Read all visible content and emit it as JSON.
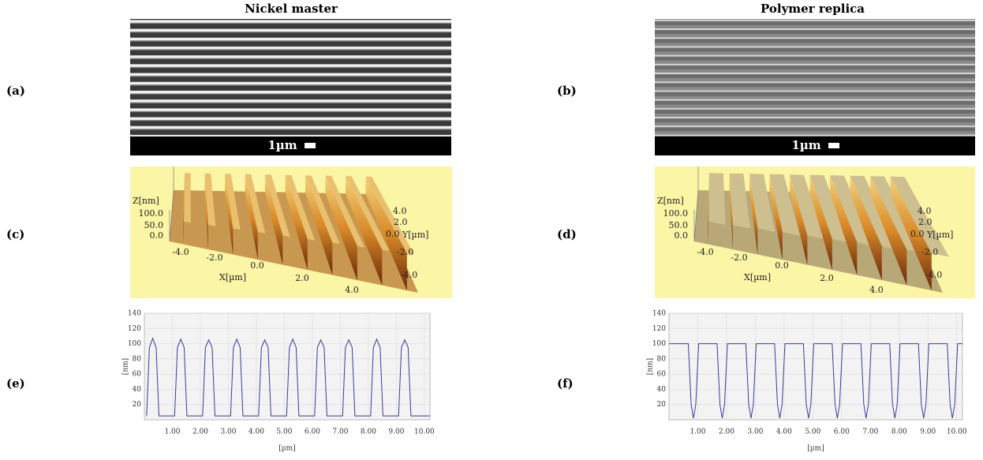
{
  "headers": [
    "Nickel master",
    "Polymer replica"
  ],
  "panel_labels": [
    "(a)",
    "(b)",
    "(c)",
    "(d)",
    "(e)",
    "(f)"
  ],
  "sem_scale": [
    "1µm",
    "1µm"
  ],
  "afm": [
    {
      "z_label": "Z[nm]",
      "z_ticks": [
        "100.0",
        "50.0",
        "0.0"
      ],
      "x_label": "X[µm]",
      "x_ticks": [
        "-4.0",
        "-2.0",
        "0.0",
        "2.0",
        "4.0"
      ],
      "y_label": "Y[µm]",
      "y_ticks": [
        "4.0",
        "2.0",
        "0.0",
        "-2.0",
        "-4.0"
      ]
    },
    {
      "z_label": "Z[nm]",
      "z_ticks": [
        "100.0",
        "50.0",
        "0.0"
      ],
      "x_label": "X[µm]",
      "x_ticks": [
        "-4.0",
        "-2.0",
        "0.0",
        "2.0",
        "4.0"
      ],
      "y_label": "Y[µm]",
      "y_ticks": [
        "4.0",
        "2.0",
        "0.0",
        "-2.0",
        "-4.0"
      ]
    }
  ],
  "chart_data": [
    {
      "type": "line",
      "xlabel": "[µm]",
      "ylabel": "[nm]",
      "color": "#3a3a9a",
      "grid": true,
      "x": [
        0.08,
        0.18,
        0.3,
        0.42,
        0.52,
        1.08,
        1.18,
        1.3,
        1.42,
        1.52,
        2.08,
        2.18,
        2.3,
        2.42,
        2.52,
        3.08,
        3.18,
        3.3,
        3.42,
        3.52,
        4.08,
        4.18,
        4.3,
        4.42,
        4.52,
        5.08,
        5.18,
        5.3,
        5.42,
        5.52,
        6.08,
        6.18,
        6.3,
        6.42,
        6.52,
        7.08,
        7.18,
        7.3,
        7.42,
        7.52,
        8.08,
        8.18,
        8.3,
        8.42,
        8.52,
        9.08,
        9.18,
        9.3,
        9.42,
        9.52,
        10.2
      ],
      "values": [
        5,
        95,
        107,
        95,
        5,
        5,
        95,
        106,
        95,
        5,
        5,
        95,
        105,
        95,
        5,
        5,
        95,
        106,
        95,
        5,
        5,
        95,
        105,
        95,
        5,
        5,
        95,
        106,
        95,
        5,
        5,
        95,
        105,
        95,
        5,
        5,
        95,
        105,
        95,
        5,
        5,
        95,
        106,
        95,
        5,
        5,
        95,
        105,
        95,
        5,
        5
      ],
      "xlim": [
        0,
        10.2
      ],
      "ylim": [
        0,
        140
      ],
      "xticks": [
        {
          "value": 1,
          "label": "1.00"
        },
        {
          "value": 2,
          "label": "2.00"
        },
        {
          "value": 3,
          "label": "3.00"
        },
        {
          "value": 4,
          "label": "4.00"
        },
        {
          "value": 5,
          "label": "5.00"
        },
        {
          "value": 6,
          "label": "6.00"
        },
        {
          "value": 7,
          "label": "7.00"
        },
        {
          "value": 8,
          "label": "8.00"
        },
        {
          "value": 9,
          "label": "9.00"
        },
        {
          "value": 10,
          "label": "10.00"
        }
      ],
      "yticks": [
        20,
        40,
        60,
        80,
        100,
        120,
        140
      ]
    },
    {
      "type": "line",
      "xlabel": "[µm]",
      "ylabel": "[nm]",
      "color": "#3a3a9a",
      "grid": true,
      "x": [
        0,
        0.67,
        0.77,
        0.85,
        0.93,
        1.03,
        1.67,
        1.77,
        1.85,
        1.93,
        2.03,
        2.67,
        2.77,
        2.85,
        2.93,
        3.03,
        3.67,
        3.77,
        3.85,
        3.93,
        4.03,
        4.67,
        4.77,
        4.85,
        4.93,
        5.03,
        5.67,
        5.77,
        5.85,
        5.93,
        6.03,
        6.67,
        6.77,
        6.85,
        6.93,
        7.03,
        7.67,
        7.77,
        7.85,
        7.93,
        8.03,
        8.67,
        8.77,
        8.85,
        8.93,
        9.03,
        9.67,
        9.77,
        9.85,
        9.93,
        10.03,
        10.2
      ],
      "values": [
        100,
        100,
        20,
        2,
        20,
        100,
        100,
        20,
        2,
        20,
        100,
        100,
        20,
        2,
        20,
        100,
        100,
        20,
        2,
        20,
        100,
        100,
        20,
        2,
        20,
        100,
        100,
        20,
        2,
        20,
        100,
        100,
        20,
        2,
        20,
        100,
        100,
        20,
        2,
        20,
        100,
        100,
        20,
        2,
        20,
        100,
        100,
        20,
        2,
        20,
        100,
        100
      ],
      "xlim": [
        0,
        10.2
      ],
      "ylim": [
        0,
        140
      ],
      "xticks": [
        {
          "value": 1,
          "label": "1.00"
        },
        {
          "value": 2,
          "label": "2.00"
        },
        {
          "value": 3,
          "label": "3.00"
        },
        {
          "value": 4,
          "label": "4.00"
        },
        {
          "value": 5,
          "label": "5.00"
        },
        {
          "value": 6,
          "label": "6.00"
        },
        {
          "value": 7,
          "label": "7.00"
        },
        {
          "value": 8,
          "label": "8.00"
        },
        {
          "value": 9,
          "label": "9.00"
        },
        {
          "value": 10,
          "label": "10.00"
        }
      ],
      "yticks": [
        20,
        40,
        60,
        80,
        100,
        120,
        140
      ]
    }
  ]
}
